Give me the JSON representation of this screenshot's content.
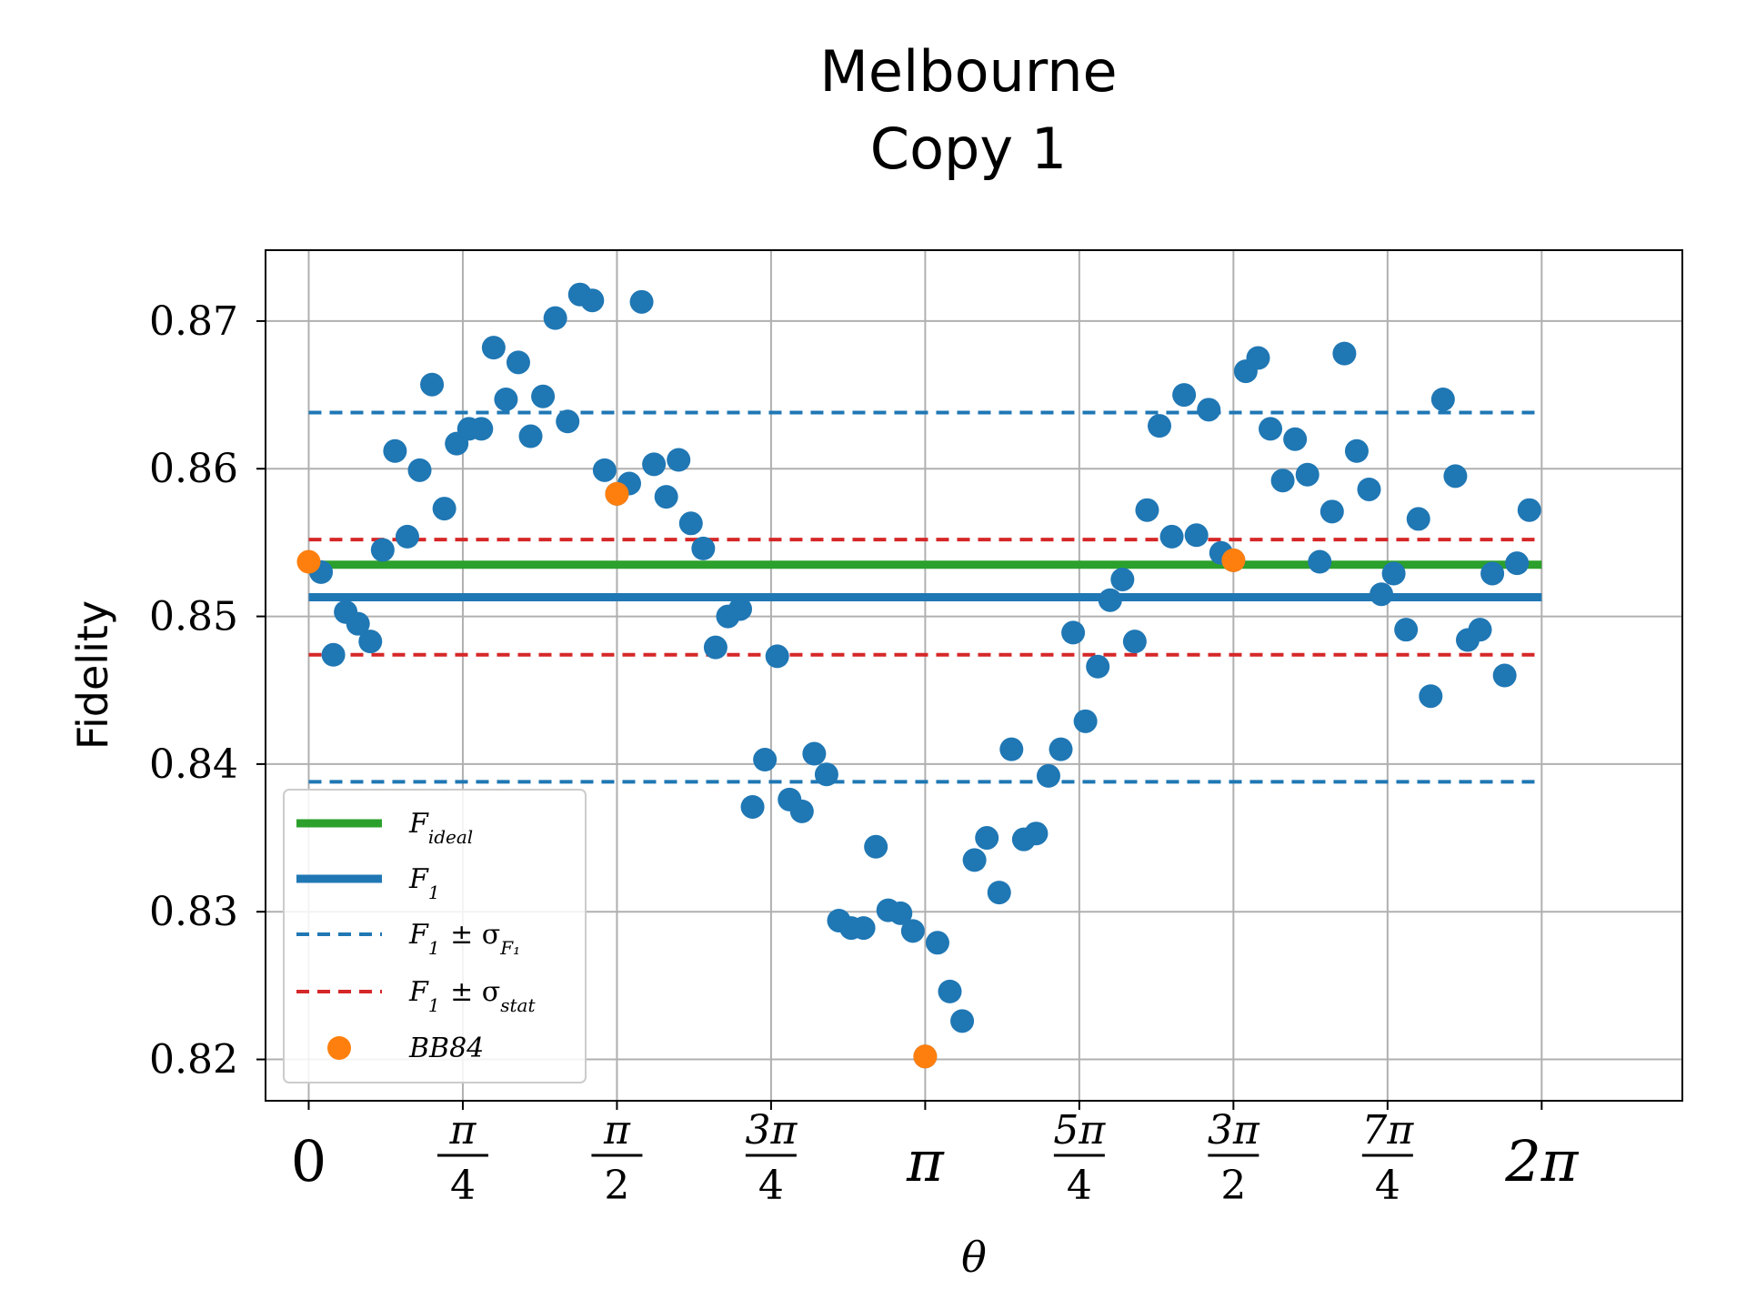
{
  "chart_data": {
    "type": "scatter",
    "title": [
      "Melbourne",
      "Copy 1"
    ],
    "xlabel": "θ",
    "ylabel": "Fidelity",
    "xlim": [
      -0.22,
      7.0
    ],
    "ylim": [
      0.8172,
      0.8748
    ],
    "grid": true,
    "legend_position": "lower-left",
    "x_ticks": [
      {
        "value": 0,
        "num": "0",
        "den": ""
      },
      {
        "value": 0.7854,
        "num": "π",
        "den": "4"
      },
      {
        "value": 1.5708,
        "num": "π",
        "den": "2"
      },
      {
        "value": 2.3562,
        "num": "3π",
        "den": "4"
      },
      {
        "value": 3.1416,
        "num": "π",
        "den": ""
      },
      {
        "value": 3.927,
        "num": "5π",
        "den": "4"
      },
      {
        "value": 4.7124,
        "num": "3π",
        "den": "2"
      },
      {
        "value": 5.4978,
        "num": "7π",
        "den": "4"
      },
      {
        "value": 6.2832,
        "num": "2π",
        "den": ""
      }
    ],
    "y_ticks": [
      {
        "value": 0.82,
        "label": "0.82"
      },
      {
        "value": 0.83,
        "label": "0.83"
      },
      {
        "value": 0.84,
        "label": "0.84"
      },
      {
        "value": 0.85,
        "label": "0.85"
      },
      {
        "value": 0.86,
        "label": "0.86"
      },
      {
        "value": 0.87,
        "label": "0.87"
      }
    ],
    "series": [
      {
        "name": "F_ideal",
        "kind": "hline",
        "y": 0.8535,
        "x_range": [
          0,
          6.2832
        ],
        "color": "#2ca02c",
        "style": "solid"
      },
      {
        "name": "F_1",
        "kind": "hline",
        "y": 0.8513,
        "x_range": [
          0,
          6.2832
        ],
        "color": "#1f77b4",
        "style": "solid"
      },
      {
        "name": "F_1 ± σ_F1",
        "kind": "hband",
        "y": [
          0.8638,
          0.8388
        ],
        "x_range": [
          0,
          6.2832
        ],
        "color": "#1f77b4",
        "style": "dashed"
      },
      {
        "name": "F_1 ± σ_stat",
        "kind": "hband",
        "y": [
          0.8552,
          0.8474
        ],
        "x_range": [
          0,
          6.2832
        ],
        "color": "#d62728",
        "style": "dashed"
      },
      {
        "name": "data",
        "kind": "scatter",
        "color": "#1f77b4",
        "x": [
          0.0628,
          0.1257,
          0.1885,
          0.2513,
          0.3142,
          0.377,
          0.4398,
          0.5027,
          0.5655,
          0.6283,
          0.6912,
          0.754,
          0.8168,
          0.8796,
          0.9425,
          1.0053,
          1.0681,
          1.131,
          1.1938,
          1.2566,
          1.3195,
          1.3823,
          1.4451,
          1.508,
          1.5708,
          1.6336,
          1.6965,
          1.7593,
          1.8221,
          1.885,
          1.9478,
          2.0106,
          2.0735,
          2.1363,
          2.1991,
          2.2619,
          2.3248,
          2.3876,
          2.4504,
          2.5133,
          2.5761,
          2.6389,
          2.7018,
          2.7646,
          2.8274,
          2.8903,
          2.9531,
          3.0159,
          3.0788,
          3.1416,
          3.2044,
          3.2673,
          3.3301,
          3.3929,
          3.4558,
          3.5186,
          3.5814,
          3.6442,
          3.7071,
          3.7699,
          3.8327,
          3.8956,
          3.9584,
          4.0212,
          4.0841,
          4.1469,
          4.2097,
          4.2726,
          4.3354,
          4.3982,
          4.4611,
          4.5239,
          4.5867,
          4.6496,
          4.7124,
          4.7752,
          4.8381,
          4.9009,
          4.9637,
          5.0265,
          5.0894,
          5.1522,
          5.215,
          5.2779,
          5.3407,
          5.4035,
          5.4664,
          5.5292,
          5.592,
          5.6549,
          5.7177,
          5.7805,
          5.8434,
          5.9062,
          5.969,
          6.0319,
          6.0947,
          6.1575,
          6.2204
        ],
        "y": [
          0.853,
          0.8474,
          0.8503,
          0.8495,
          0.8483,
          0.8545,
          0.8612,
          0.8554,
          0.8599,
          0.8657,
          0.8573,
          0.8617,
          0.8627,
          0.8627,
          0.8682,
          0.8647,
          0.8672,
          0.8622,
          0.8649,
          0.8702,
          0.8632,
          0.8718,
          0.8714,
          0.8599,
          0.8583,
          0.859,
          0.8713,
          0.8603,
          0.8581,
          0.8606,
          0.8563,
          0.8546,
          0.8479,
          0.85,
          0.8505,
          0.8371,
          0.8403,
          0.8473,
          0.8376,
          0.8368,
          0.8407,
          0.8393,
          0.8294,
          0.8289,
          0.8289,
          0.8344,
          0.8301,
          0.8299,
          0.8287,
          0.8202,
          0.8279,
          0.8246,
          0.8226,
          0.8335,
          0.835,
          0.8313,
          0.841,
          0.8349,
          0.8353,
          0.8392,
          0.841,
          0.8489,
          0.8429,
          0.8466,
          0.8511,
          0.8525,
          0.8483,
          0.8572,
          0.8629,
          0.8554,
          0.865,
          0.8555,
          0.864,
          0.8543,
          0.8538,
          0.8666,
          0.8675,
          0.8627,
          0.8592,
          0.862,
          0.8596,
          0.8537,
          0.8571,
          0.8678,
          0.8612,
          0.8586,
          0.8515,
          0.8529,
          0.8491,
          0.8566,
          0.8446,
          0.8647,
          0.8595,
          0.8484,
          0.8491,
          0.8529,
          0.846,
          0.8536,
          0.8572
        ]
      },
      {
        "name": "BB84",
        "kind": "scatter",
        "color": "#ff7f0e",
        "x": [
          0,
          1.5708,
          3.1416,
          4.7124
        ],
        "y": [
          0.8537,
          0.8583,
          0.8202,
          0.8538
        ]
      }
    ],
    "legend": [
      {
        "symbol": "solid",
        "color": "#2ca02c",
        "base": "F",
        "sub": "ideal",
        "tail": ""
      },
      {
        "symbol": "solid",
        "color": "#1f77b4",
        "base": "F",
        "sub": "1",
        "tail": ""
      },
      {
        "symbol": "dashed",
        "color": "#1f77b4",
        "base": "F",
        "sub": "1",
        "tail": " ± σ",
        "tail_sub": "F₁"
      },
      {
        "symbol": "dashed",
        "color": "#d62728",
        "base": "F",
        "sub": "1",
        "tail": " ± σ",
        "tail_sub": "stat"
      },
      {
        "symbol": "dot",
        "color": "#ff7f0e",
        "base": "BB84",
        "sub": "",
        "tail": ""
      }
    ]
  }
}
